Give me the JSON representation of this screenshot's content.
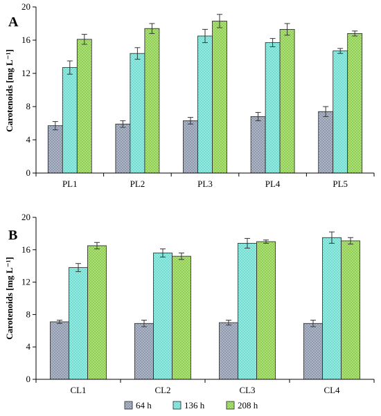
{
  "legend": [
    {
      "label": "64 h",
      "color": "#8e99ad"
    },
    {
      "label": "136 h",
      "color": "#6fded3"
    },
    {
      "label": "208 h",
      "color": "#8fd14f"
    }
  ],
  "chart_data": [
    {
      "type": "bar",
      "panel_label": "A",
      "ylabel": "Carotenoids [mg L⁻¹]",
      "ylim": [
        0,
        20
      ],
      "yticks": [
        0,
        4,
        8,
        12,
        16,
        20
      ],
      "categories": [
        "PL1",
        "PL2",
        "PL3",
        "PL4",
        "PL5"
      ],
      "series": [
        {
          "name": "64 h",
          "values": [
            5.7,
            5.9,
            6.3,
            6.8,
            7.4
          ],
          "errors": [
            0.5,
            0.4,
            0.4,
            0.5,
            0.6
          ]
        },
        {
          "name": "136 h",
          "values": [
            12.7,
            14.4,
            16.5,
            15.7,
            14.7
          ],
          "errors": [
            0.8,
            0.7,
            0.8,
            0.5,
            0.3
          ]
        },
        {
          "name": "208 h",
          "values": [
            16.1,
            17.4,
            18.3,
            17.3,
            16.8
          ],
          "errors": [
            0.6,
            0.6,
            0.8,
            0.7,
            0.3
          ]
        }
      ]
    },
    {
      "type": "bar",
      "panel_label": "B",
      "ylabel": "Carotenoids [mg L⁻¹]",
      "ylim": [
        0,
        20
      ],
      "yticks": [
        0,
        4,
        8,
        12,
        16,
        20
      ],
      "categories": [
        "CL1",
        "CL2",
        "CL3",
        "CL4"
      ],
      "series": [
        {
          "name": "64 h",
          "values": [
            7.1,
            6.9,
            7.0,
            6.9
          ],
          "errors": [
            0.2,
            0.4,
            0.3,
            0.4
          ]
        },
        {
          "name": "136 h",
          "values": [
            13.8,
            15.6,
            16.8,
            17.5
          ],
          "errors": [
            0.5,
            0.5,
            0.6,
            0.7
          ]
        },
        {
          "name": "208 h",
          "values": [
            16.5,
            15.2,
            17.0,
            17.1
          ],
          "errors": [
            0.4,
            0.4,
            0.2,
            0.4
          ]
        }
      ]
    }
  ]
}
